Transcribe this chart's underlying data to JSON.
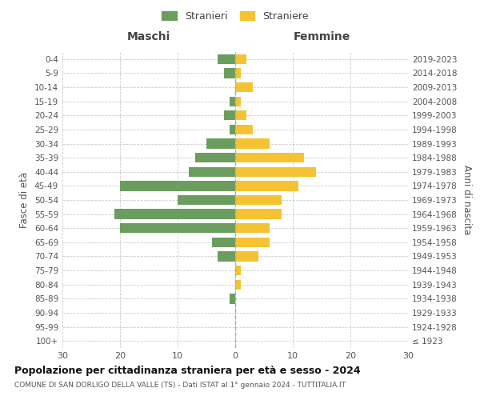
{
  "age_groups": [
    "100+",
    "95-99",
    "90-94",
    "85-89",
    "80-84",
    "75-79",
    "70-74",
    "65-69",
    "60-64",
    "55-59",
    "50-54",
    "45-49",
    "40-44",
    "35-39",
    "30-34",
    "25-29",
    "20-24",
    "15-19",
    "10-14",
    "5-9",
    "0-4"
  ],
  "birth_years": [
    "≤ 1923",
    "1924-1928",
    "1929-1933",
    "1934-1938",
    "1939-1943",
    "1944-1948",
    "1949-1953",
    "1954-1958",
    "1959-1963",
    "1964-1968",
    "1969-1973",
    "1974-1978",
    "1979-1983",
    "1984-1988",
    "1989-1993",
    "1994-1998",
    "1999-2003",
    "2004-2008",
    "2009-2013",
    "2014-2018",
    "2019-2023"
  ],
  "males": [
    0,
    0,
    0,
    1,
    0,
    0,
    3,
    4,
    20,
    21,
    10,
    20,
    8,
    7,
    5,
    1,
    2,
    1,
    0,
    2,
    3
  ],
  "females": [
    0,
    0,
    0,
    0,
    1,
    1,
    4,
    6,
    6,
    8,
    8,
    11,
    14,
    12,
    6,
    3,
    2,
    1,
    3,
    1,
    2
  ],
  "male_color": "#6b9e5e",
  "female_color": "#f5c332",
  "title": "Popolazione per cittadinanza straniera per età e sesso - 2024",
  "subtitle": "COMUNE DI SAN DORLIGO DELLA VALLE (TS) - Dati ISTAT al 1° gennaio 2024 - TUTTITALIA.IT",
  "ylabel_left": "Fasce di età",
  "ylabel_right": "Anni di nascita",
  "xlabel_left": "Maschi",
  "xlabel_right": "Femmine",
  "legend_male": "Stranieri",
  "legend_female": "Straniere",
  "xlim": 30,
  "background_color": "#ffffff",
  "grid_color": "#cccccc"
}
